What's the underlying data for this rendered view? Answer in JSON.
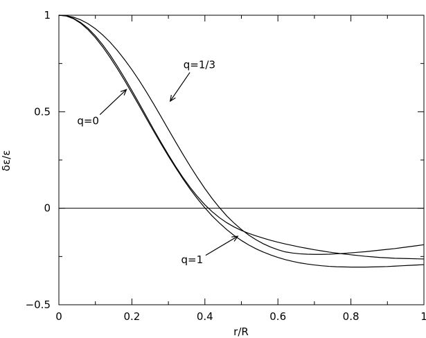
{
  "chart_data": {
    "type": "line",
    "xlabel": "r/R",
    "ylabel": "δε/ε",
    "xlim": [
      0,
      1
    ],
    "ylim": [
      -0.5,
      1
    ],
    "grid": false,
    "legend": "none",
    "x_ticks": [
      {
        "value": 0,
        "label": "0"
      },
      {
        "value": 0.2,
        "label": "0.2"
      },
      {
        "value": 0.4,
        "label": "0.4"
      },
      {
        "value": 0.6,
        "label": "0.6"
      },
      {
        "value": 0.8,
        "label": "0.8"
      },
      {
        "value": 1,
        "label": "1"
      }
    ],
    "y_ticks": [
      {
        "value": -0.5,
        "label": "−0.5"
      },
      {
        "value": 0,
        "label": "0"
      },
      {
        "value": 0.5,
        "label": "0.5"
      },
      {
        "value": 1,
        "label": "1"
      }
    ],
    "x_minor_ticks": [
      0.1,
      0.3,
      0.5,
      0.7,
      0.9
    ],
    "y_minor_ticks": [
      -0.25,
      0.25,
      0.75
    ],
    "reference_line": {
      "y": 0
    },
    "series": [
      {
        "name": "q=0",
        "x": [
          0,
          0.02,
          0.04,
          0.06,
          0.08,
          0.1,
          0.12,
          0.14,
          0.16,
          0.18,
          0.2,
          0.22,
          0.24,
          0.26,
          0.28,
          0.3,
          0.32,
          0.34,
          0.36,
          0.38,
          0.4,
          0.42,
          0.44,
          0.46,
          0.48,
          0.5,
          0.52,
          0.54,
          0.56,
          0.58,
          0.6,
          0.62,
          0.64,
          0.66,
          0.68,
          0.7,
          0.72,
          0.74,
          0.76,
          0.78,
          0.8,
          0.82,
          0.84,
          0.86,
          0.88,
          0.9,
          0.92,
          0.94,
          0.96,
          0.98,
          1
        ],
        "y": [
          1,
          0.997,
          0.984,
          0.962,
          0.932,
          0.893,
          0.847,
          0.795,
          0.737,
          0.675,
          0.61,
          0.543,
          0.475,
          0.407,
          0.341,
          0.277,
          0.216,
          0.159,
          0.107,
          0.06,
          0.018,
          -0.018,
          -0.049,
          -0.075,
          -0.097,
          -0.115,
          -0.13,
          -0.143,
          -0.155,
          -0.166,
          -0.176,
          -0.185,
          -0.193,
          -0.201,
          -0.208,
          -0.215,
          -0.221,
          -0.227,
          -0.232,
          -0.237,
          -0.241,
          -0.245,
          -0.249,
          -0.252,
          -0.255,
          -0.257,
          -0.259,
          -0.26,
          -0.261,
          -0.262,
          -0.263
        ]
      },
      {
        "name": "q=1/3",
        "x": [
          0,
          0.02,
          0.04,
          0.06,
          0.08,
          0.1,
          0.12,
          0.14,
          0.16,
          0.18,
          0.2,
          0.22,
          0.24,
          0.26,
          0.28,
          0.3,
          0.32,
          0.34,
          0.36,
          0.38,
          0.4,
          0.42,
          0.44,
          0.46,
          0.48,
          0.5,
          0.52,
          0.54,
          0.56,
          0.58,
          0.6,
          0.62,
          0.64,
          0.66,
          0.68,
          0.7,
          0.72,
          0.74,
          0.76,
          0.78,
          0.8,
          0.82,
          0.84,
          0.86,
          0.88,
          0.9,
          0.92,
          0.94,
          0.96,
          0.98,
          1
        ],
        "y": [
          1,
          0.998,
          0.99,
          0.976,
          0.956,
          0.93,
          0.898,
          0.861,
          0.818,
          0.77,
          0.718,
          0.662,
          0.602,
          0.539,
          0.474,
          0.408,
          0.343,
          0.279,
          0.217,
          0.158,
          0.102,
          0.05,
          0.003,
          -0.04,
          -0.077,
          -0.11,
          -0.139,
          -0.163,
          -0.184,
          -0.201,
          -0.215,
          -0.226,
          -0.232,
          -0.236,
          -0.238,
          -0.239,
          -0.239,
          -0.238,
          -0.236,
          -0.234,
          -0.231,
          -0.228,
          -0.225,
          -0.221,
          -0.217,
          -0.213,
          -0.209,
          -0.204,
          -0.199,
          -0.194,
          -0.189
        ]
      },
      {
        "name": "q=1",
        "x": [
          0,
          0.02,
          0.04,
          0.06,
          0.08,
          0.1,
          0.12,
          0.14,
          0.16,
          0.18,
          0.2,
          0.22,
          0.24,
          0.26,
          0.28,
          0.3,
          0.32,
          0.34,
          0.36,
          0.38,
          0.4,
          0.42,
          0.44,
          0.46,
          0.48,
          0.5,
          0.52,
          0.54,
          0.56,
          0.58,
          0.6,
          0.62,
          0.64,
          0.66,
          0.68,
          0.7,
          0.72,
          0.74,
          0.76,
          0.78,
          0.8,
          0.82,
          0.84,
          0.86,
          0.88,
          0.9,
          0.92,
          0.94,
          0.96,
          0.98,
          1
        ],
        "y": [
          1,
          0.996,
          0.982,
          0.958,
          0.925,
          0.884,
          0.836,
          0.782,
          0.724,
          0.662,
          0.597,
          0.531,
          0.464,
          0.398,
          0.333,
          0.27,
          0.21,
          0.152,
          0.098,
          0.048,
          0.002,
          -0.04,
          -0.077,
          -0.111,
          -0.141,
          -0.167,
          -0.19,
          -0.21,
          -0.227,
          -0.242,
          -0.255,
          -0.266,
          -0.275,
          -0.283,
          -0.289,
          -0.294,
          -0.298,
          -0.301,
          -0.303,
          -0.304,
          -0.305,
          -0.305,
          -0.305,
          -0.304,
          -0.303,
          -0.302,
          -0.3,
          -0.298,
          -0.296,
          -0.294,
          -0.292
        ]
      }
    ],
    "annotations": [
      {
        "text": "q=1/3",
        "x": 0.385,
        "y": 0.725,
        "arrow_to": [
          0.305,
          0.555
        ]
      },
      {
        "text": "q=0",
        "x": 0.08,
        "y": 0.435,
        "arrow_to": [
          0.185,
          0.615
        ]
      },
      {
        "text": "q=1",
        "x": 0.365,
        "y": -0.285,
        "arrow_to": [
          0.49,
          -0.145
        ]
      }
    ]
  }
}
